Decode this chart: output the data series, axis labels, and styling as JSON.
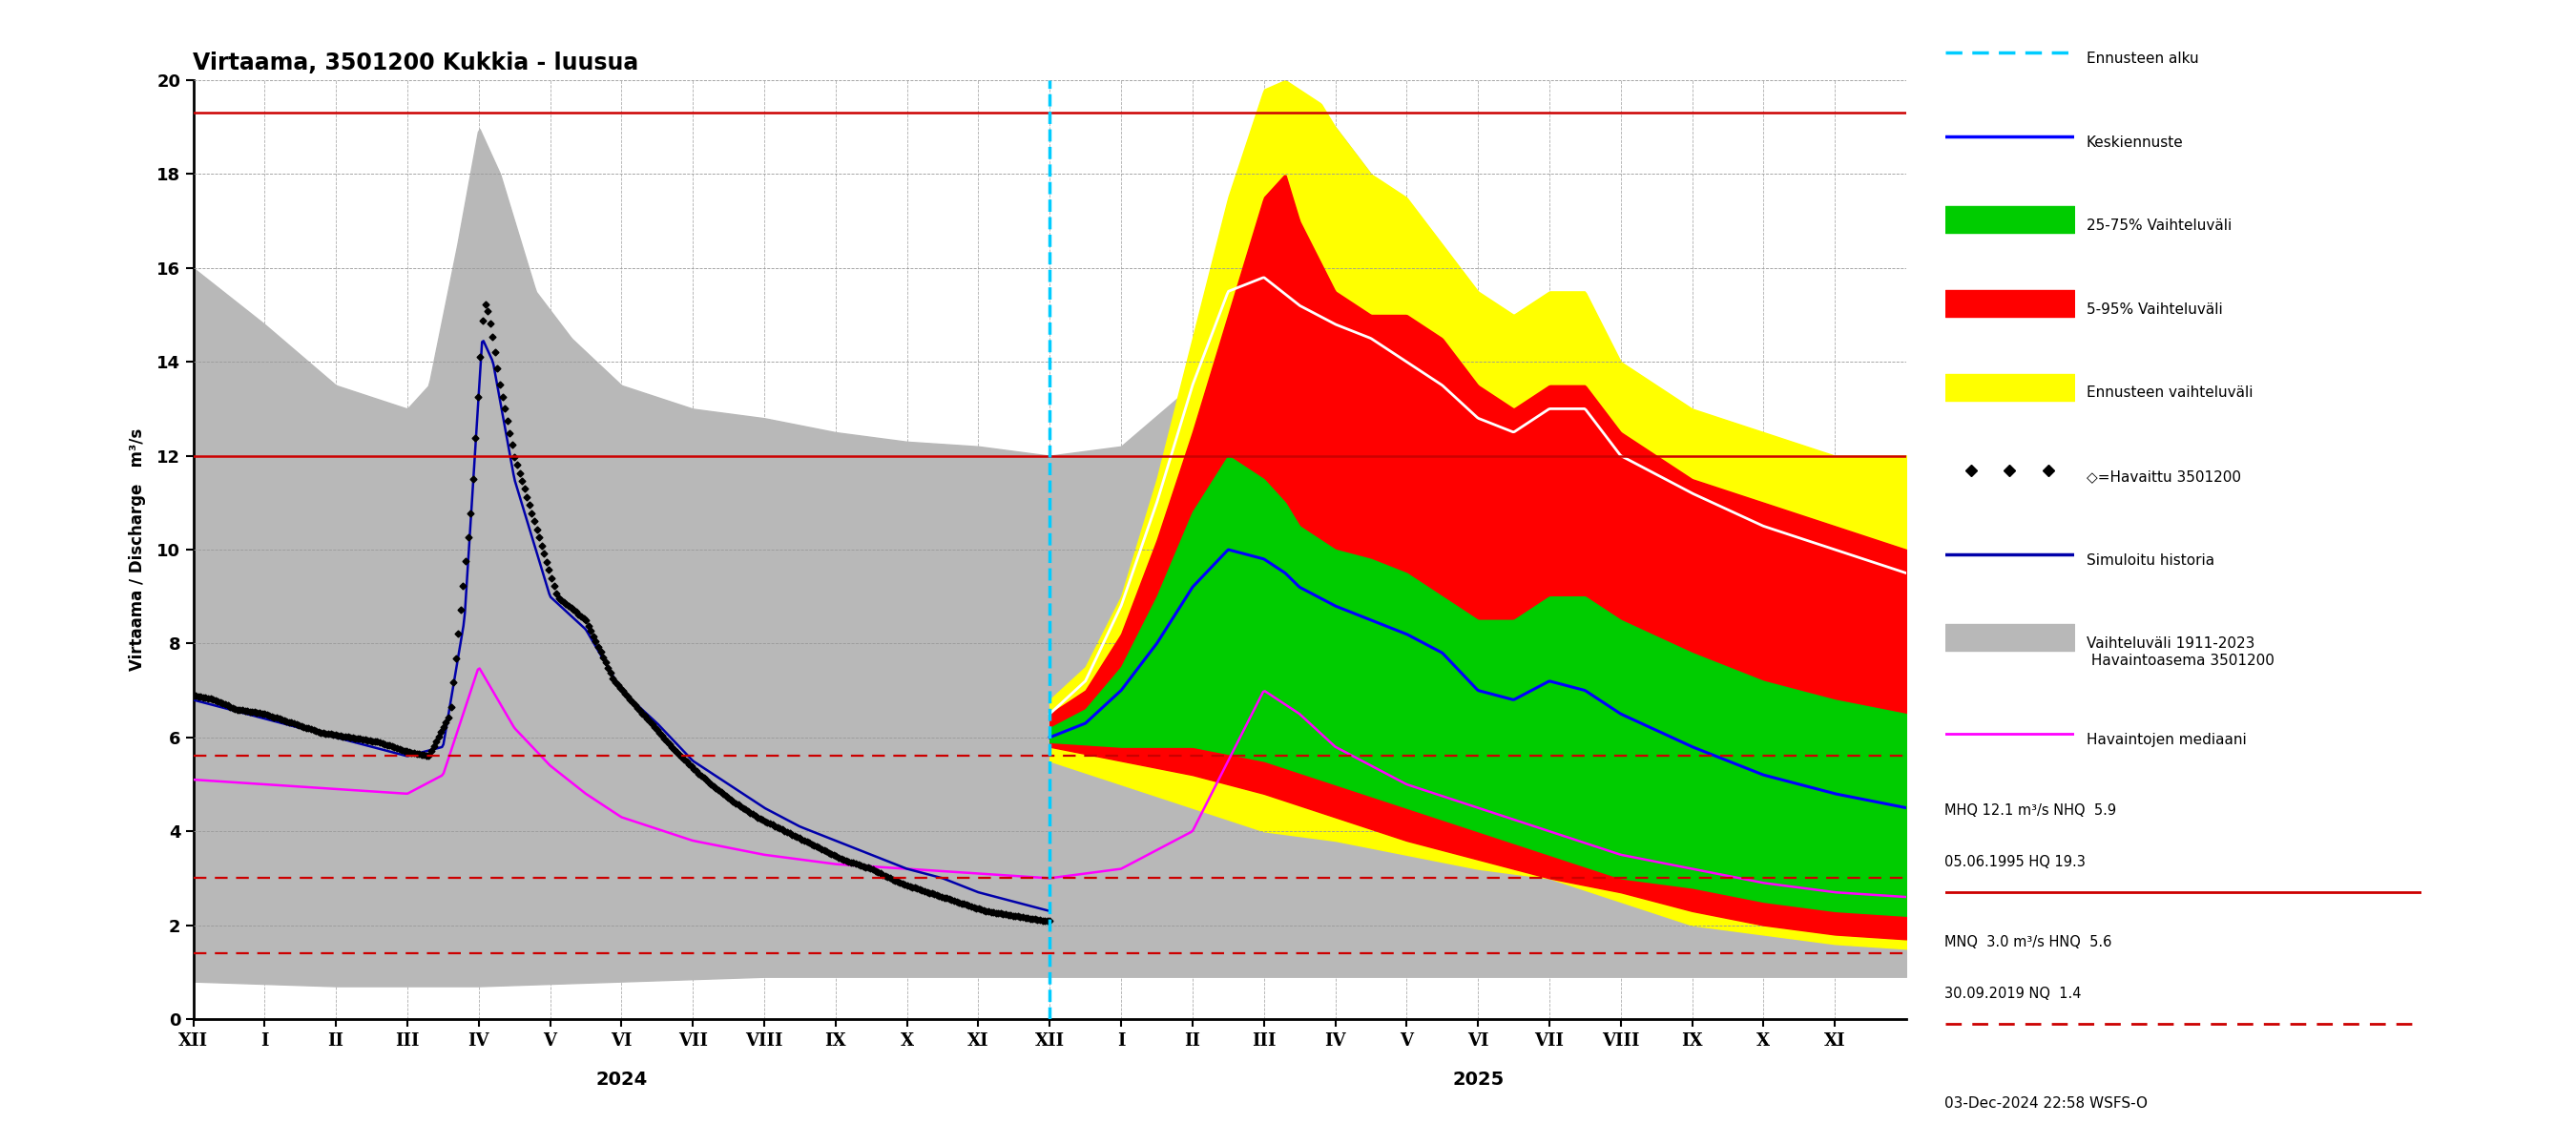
{
  "title": "Virtaama, 3501200 Kukkia - luusua",
  "ylabel_left": "Virtaama / Discharge   m³/s",
  "ylim": [
    0,
    20
  ],
  "yticks": [
    0,
    2,
    4,
    6,
    8,
    10,
    12,
    14,
    16,
    18,
    20
  ],
  "hlines_solid_red": [
    19.3,
    12.0
  ],
  "hlines_dashed_red": [
    5.6,
    3.0,
    1.4
  ],
  "footer_text": "03-Dec-2024 22:58 WSFS-O",
  "colors": {
    "forecast_line": "#0000ff",
    "forecast_band_25_75": "#00cc00",
    "forecast_band_5_95": "#ff0000",
    "forecast_band_envelope": "#ffff00",
    "observed": "#000000",
    "simulated": "#0000aa",
    "historical_band": "#b8b8b8",
    "historical_median": "#ff00ff",
    "forecast_start_line": "#00ccff",
    "solid_red": "#cc0000",
    "dashed_red": "#cc0000",
    "white_line": "#ffffff"
  },
  "obs_pts_x": [
    0,
    0.3,
    0.6,
    1.0,
    1.4,
    1.8,
    2.2,
    2.6,
    3.0,
    3.3,
    3.6,
    3.9,
    4.05,
    4.1,
    4.2,
    4.3,
    4.5,
    4.8,
    5.1,
    5.5,
    5.9,
    6.3,
    6.7,
    7.1,
    7.5,
    7.9,
    8.3,
    8.7,
    9.1,
    9.5,
    9.9,
    10.3,
    10.7,
    11.1,
    11.5,
    11.9,
    12.0
  ],
  "obs_pts_y": [
    6.9,
    6.8,
    6.6,
    6.5,
    6.3,
    6.1,
    6.0,
    5.9,
    5.7,
    5.6,
    6.5,
    11.0,
    14.8,
    15.3,
    14.5,
    13.5,
    12.0,
    10.5,
    9.0,
    8.5,
    7.2,
    6.5,
    5.8,
    5.2,
    4.7,
    4.3,
    4.0,
    3.7,
    3.4,
    3.2,
    2.9,
    2.7,
    2.5,
    2.3,
    2.2,
    2.1,
    2.1
  ],
  "sim_pts_x": [
    0,
    0.5,
    1.0,
    1.5,
    2.0,
    2.5,
    3.0,
    3.5,
    3.8,
    4.05,
    4.2,
    4.5,
    5.0,
    5.5,
    6.0,
    6.5,
    7.0,
    7.5,
    8.0,
    8.5,
    9.0,
    9.5,
    10.0,
    10.5,
    11.0,
    11.5,
    12.0
  ],
  "sim_pts_y": [
    6.8,
    6.6,
    6.4,
    6.2,
    6.0,
    5.8,
    5.6,
    5.8,
    8.5,
    14.5,
    14.0,
    11.5,
    9.0,
    8.3,
    7.0,
    6.3,
    5.5,
    5.0,
    4.5,
    4.1,
    3.8,
    3.5,
    3.2,
    3.0,
    2.7,
    2.5,
    2.3
  ],
  "hist_med_x": [
    0,
    1,
    2,
    3,
    3.5,
    4.0,
    4.5,
    5.0,
    5.5,
    6.0,
    7.0,
    8.0,
    9.0,
    10.0,
    11.0,
    12.0,
    13.0,
    14.0,
    14.5,
    15.0,
    15.5,
    16.0,
    17.0,
    18.0,
    19.0,
    20.0,
    21.0,
    22.0,
    23.0,
    24.0
  ],
  "hist_med_y": [
    5.1,
    5.0,
    4.9,
    4.8,
    5.2,
    7.5,
    6.2,
    5.4,
    4.8,
    4.3,
    3.8,
    3.5,
    3.3,
    3.2,
    3.1,
    3.0,
    3.2,
    4.0,
    5.5,
    7.0,
    6.5,
    5.8,
    5.0,
    4.5,
    4.0,
    3.5,
    3.2,
    2.9,
    2.7,
    2.6
  ],
  "hband_upper_x": [
    0,
    1,
    2,
    3,
    3.3,
    3.7,
    4.0,
    4.3,
    4.8,
    5.3,
    6.0,
    7.0,
    8.0,
    9.0,
    10.0,
    11.0,
    12.0,
    13.0,
    14.0,
    14.5,
    15.0,
    15.5,
    16.0,
    16.5,
    17.0,
    17.5,
    18.0,
    19.0,
    20.0,
    21.0,
    22.0,
    23.0,
    24.0
  ],
  "hband_upper_y": [
    16.0,
    14.8,
    13.5,
    13.0,
    13.5,
    16.5,
    19.0,
    18.0,
    15.5,
    14.5,
    13.5,
    13.0,
    12.8,
    12.5,
    12.3,
    12.2,
    12.0,
    12.2,
    13.5,
    15.5,
    18.0,
    19.5,
    19.0,
    18.0,
    16.5,
    15.5,
    14.5,
    13.5,
    13.0,
    12.5,
    12.0,
    12.0,
    12.0
  ],
  "hband_lower_x": [
    0,
    2,
    4,
    6,
    8,
    10,
    12,
    14,
    16,
    18,
    20,
    22,
    24
  ],
  "hband_lower_y": [
    0.8,
    0.7,
    0.7,
    0.8,
    0.9,
    0.9,
    0.9,
    0.9,
    0.9,
    0.9,
    0.9,
    0.9,
    0.9
  ],
  "fore_env_upper_x": [
    12,
    12.5,
    13.0,
    13.5,
    14.0,
    14.5,
    15.0,
    15.3,
    15.5,
    15.8,
    16.0,
    16.5,
    17.0,
    17.5,
    18.0,
    18.5,
    19.0,
    19.5,
    20.0,
    21.0,
    22.0,
    23.0,
    24.0
  ],
  "fore_env_upper_y": [
    6.8,
    7.5,
    9.0,
    11.5,
    14.5,
    17.5,
    19.8,
    20.0,
    19.8,
    19.5,
    19.0,
    18.0,
    17.5,
    16.5,
    15.5,
    15.0,
    15.5,
    15.5,
    14.0,
    13.0,
    12.5,
    12.0,
    12.0
  ],
  "fore_env_lower_x": [
    12,
    13,
    14,
    15,
    16,
    17,
    18,
    19,
    20,
    21,
    22,
    23,
    24
  ],
  "fore_env_lower_y": [
    5.5,
    5.0,
    4.5,
    4.0,
    3.8,
    3.5,
    3.2,
    3.0,
    2.5,
    2.0,
    1.8,
    1.6,
    1.5
  ],
  "fore_red_upper_x": [
    12,
    12.5,
    13.0,
    13.5,
    14.0,
    14.5,
    15.0,
    15.3,
    15.5,
    16.0,
    16.5,
    17.0,
    17.5,
    18.0,
    18.5,
    19.0,
    19.5,
    20.0,
    21.0,
    22.0,
    23.0,
    24.0
  ],
  "fore_red_upper_y": [
    6.5,
    7.0,
    8.2,
    10.2,
    12.5,
    15.0,
    17.5,
    18.0,
    17.0,
    15.5,
    15.0,
    15.0,
    14.5,
    13.5,
    13.0,
    13.5,
    13.5,
    12.5,
    11.5,
    11.0,
    10.5,
    10.0
  ],
  "fore_red_lower_x": [
    12,
    13,
    14,
    15,
    16,
    17,
    18,
    19,
    20,
    21,
    22,
    23,
    24
  ],
  "fore_red_lower_y": [
    5.8,
    5.5,
    5.2,
    4.8,
    4.3,
    3.8,
    3.4,
    3.0,
    2.7,
    2.3,
    2.0,
    1.8,
    1.7
  ],
  "fore_grn_upper_x": [
    12,
    12.5,
    13.0,
    13.5,
    14.0,
    14.5,
    15.0,
    15.3,
    15.5,
    16.0,
    16.5,
    17.0,
    17.5,
    18.0,
    18.5,
    19.0,
    19.5,
    20.0,
    21.0,
    22.0,
    23.0,
    24.0
  ],
  "fore_grn_upper_y": [
    6.2,
    6.6,
    7.5,
    9.0,
    10.8,
    12.0,
    11.5,
    11.0,
    10.5,
    10.0,
    9.8,
    9.5,
    9.0,
    8.5,
    8.5,
    9.0,
    9.0,
    8.5,
    7.8,
    7.2,
    6.8,
    6.5
  ],
  "fore_grn_lower_x": [
    12,
    13,
    14,
    15,
    16,
    17,
    18,
    19,
    20,
    21,
    22,
    23,
    24
  ],
  "fore_grn_lower_y": [
    5.9,
    5.8,
    5.8,
    5.5,
    5.0,
    4.5,
    4.0,
    3.5,
    3.0,
    2.8,
    2.5,
    2.3,
    2.2
  ],
  "fore_blue_x": [
    12,
    12.5,
    13.0,
    13.5,
    14.0,
    14.5,
    15.0,
    15.3,
    15.5,
    16.0,
    16.5,
    17.0,
    17.5,
    18.0,
    18.5,
    19.0,
    19.5,
    20.0,
    21.0,
    22.0,
    23.0,
    24.0
  ],
  "fore_blue_y": [
    6.0,
    6.3,
    7.0,
    8.0,
    9.2,
    10.0,
    9.8,
    9.5,
    9.2,
    8.8,
    8.5,
    8.2,
    7.8,
    7.0,
    6.8,
    7.2,
    7.0,
    6.5,
    5.8,
    5.2,
    4.8,
    4.5
  ],
  "fore_white_x": [
    12,
    12.5,
    13.0,
    13.5,
    14.0,
    14.5,
    15.0,
    15.5,
    16.0,
    16.5,
    17.0,
    17.5,
    18.0,
    18.5,
    19.0,
    19.5,
    20.0,
    21.0,
    22.0,
    23.0,
    24.0
  ],
  "fore_white_y": [
    6.5,
    7.2,
    8.8,
    11.0,
    13.5,
    15.5,
    15.8,
    15.2,
    14.8,
    14.5,
    14.0,
    13.5,
    12.8,
    12.5,
    13.0,
    13.0,
    12.0,
    11.2,
    10.5,
    10.0,
    9.5
  ]
}
